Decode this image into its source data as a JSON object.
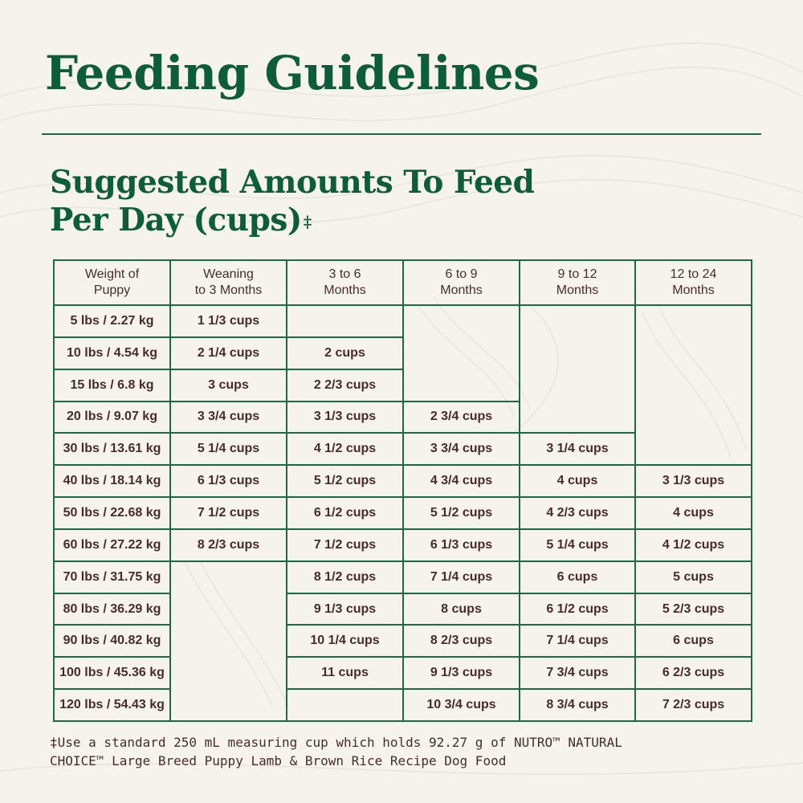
{
  "title": "Feeding Guidelines",
  "subtitle": {
    "line1": "Suggested Amounts To Feed",
    "line2": "Per Day (cups)",
    "marker": "‡"
  },
  "colors": {
    "brand_green": "#0d5c3a",
    "text_brown": "#4a2b2b",
    "background": "#f5f3ec"
  },
  "table": {
    "headers": [
      [
        "Weight of",
        "Puppy"
      ],
      [
        "Weaning",
        "to 3 Months"
      ],
      [
        "3 to 6",
        "Months"
      ],
      [
        "6 to 9",
        "Months"
      ],
      [
        "9 to 12",
        "Months"
      ],
      [
        "12 to 24",
        "Months"
      ]
    ],
    "rows": [
      {
        "weight": "5 lbs / 2.27 kg",
        "c1": "1 1/3 cups",
        "c2": "",
        "c3": "",
        "c4": "",
        "c5": ""
      },
      {
        "weight": "10 lbs / 4.54 kg",
        "c1": "2 1/4 cups",
        "c2": "2 cups",
        "c3": "",
        "c4": "",
        "c5": ""
      },
      {
        "weight": "15 lbs / 6.8 kg",
        "c1": "3 cups",
        "c2": "2 2/3 cups",
        "c3": "",
        "c4": "",
        "c5": ""
      },
      {
        "weight": "20 lbs / 9.07 kg",
        "c1": "3 3/4 cups",
        "c2": "3 1/3 cups",
        "c3": "2 3/4 cups",
        "c4": "",
        "c5": ""
      },
      {
        "weight": "30 lbs / 13.61 kg",
        "c1": "5 1/4 cups",
        "c2": "4 1/2 cups",
        "c3": "3 3/4 cups",
        "c4": "3 1/4 cups",
        "c5": ""
      },
      {
        "weight": "40 lbs / 18.14 kg",
        "c1": "6 1/3 cups",
        "c2": "5 1/2 cups",
        "c3": "4 3/4 cups",
        "c4": "4 cups",
        "c5": "3 1/3 cups"
      },
      {
        "weight": "50 lbs / 22.68 kg",
        "c1": "7 1/2 cups",
        "c2": "6 1/2 cups",
        "c3": "5 1/2 cups",
        "c4": "4 2/3 cups",
        "c5": "4 cups"
      },
      {
        "weight": "60 lbs / 27.22 kg",
        "c1": "8 2/3 cups",
        "c2": "7 1/2 cups",
        "c3": "6 1/3 cups",
        "c4": "5 1/4 cups",
        "c5": "4 1/2 cups"
      },
      {
        "weight": "70 lbs / 31.75 kg",
        "c1": "",
        "c2": "8 1/2 cups",
        "c3": "7 1/4 cups",
        "c4": "6 cups",
        "c5": "5 cups"
      },
      {
        "weight": "80 lbs / 36.29 kg",
        "c1": "",
        "c2": "9 1/3 cups",
        "c3": "8 cups",
        "c4": "6 1/2 cups",
        "c5": "5 2/3 cups"
      },
      {
        "weight": "90 lbs / 40.82 kg",
        "c1": "",
        "c2": "10 1/4 cups",
        "c3": "8 2/3 cups",
        "c4": "7 1/4 cups",
        "c5": "6 cups"
      },
      {
        "weight": "100 lbs / 45.36 kg",
        "c1": "",
        "c2": "11 cups",
        "c3": "9 1/3 cups",
        "c4": "7 3/4 cups",
        "c5": "6 2/3 cups"
      },
      {
        "weight": "120 lbs / 54.43 kg",
        "c1": "",
        "c2": "",
        "c3": "10 3/4 cups",
        "c4": "8 3/4 cups",
        "c5": "7 2/3 cups"
      }
    ]
  },
  "footnote": {
    "line1": "‡Use a standard 250 mL measuring cup which holds 92.27 g of NUTRO™ NATURAL",
    "line2": "CHOICE™ Large Breed Puppy Lamb & Brown Rice Recipe Dog Food"
  }
}
